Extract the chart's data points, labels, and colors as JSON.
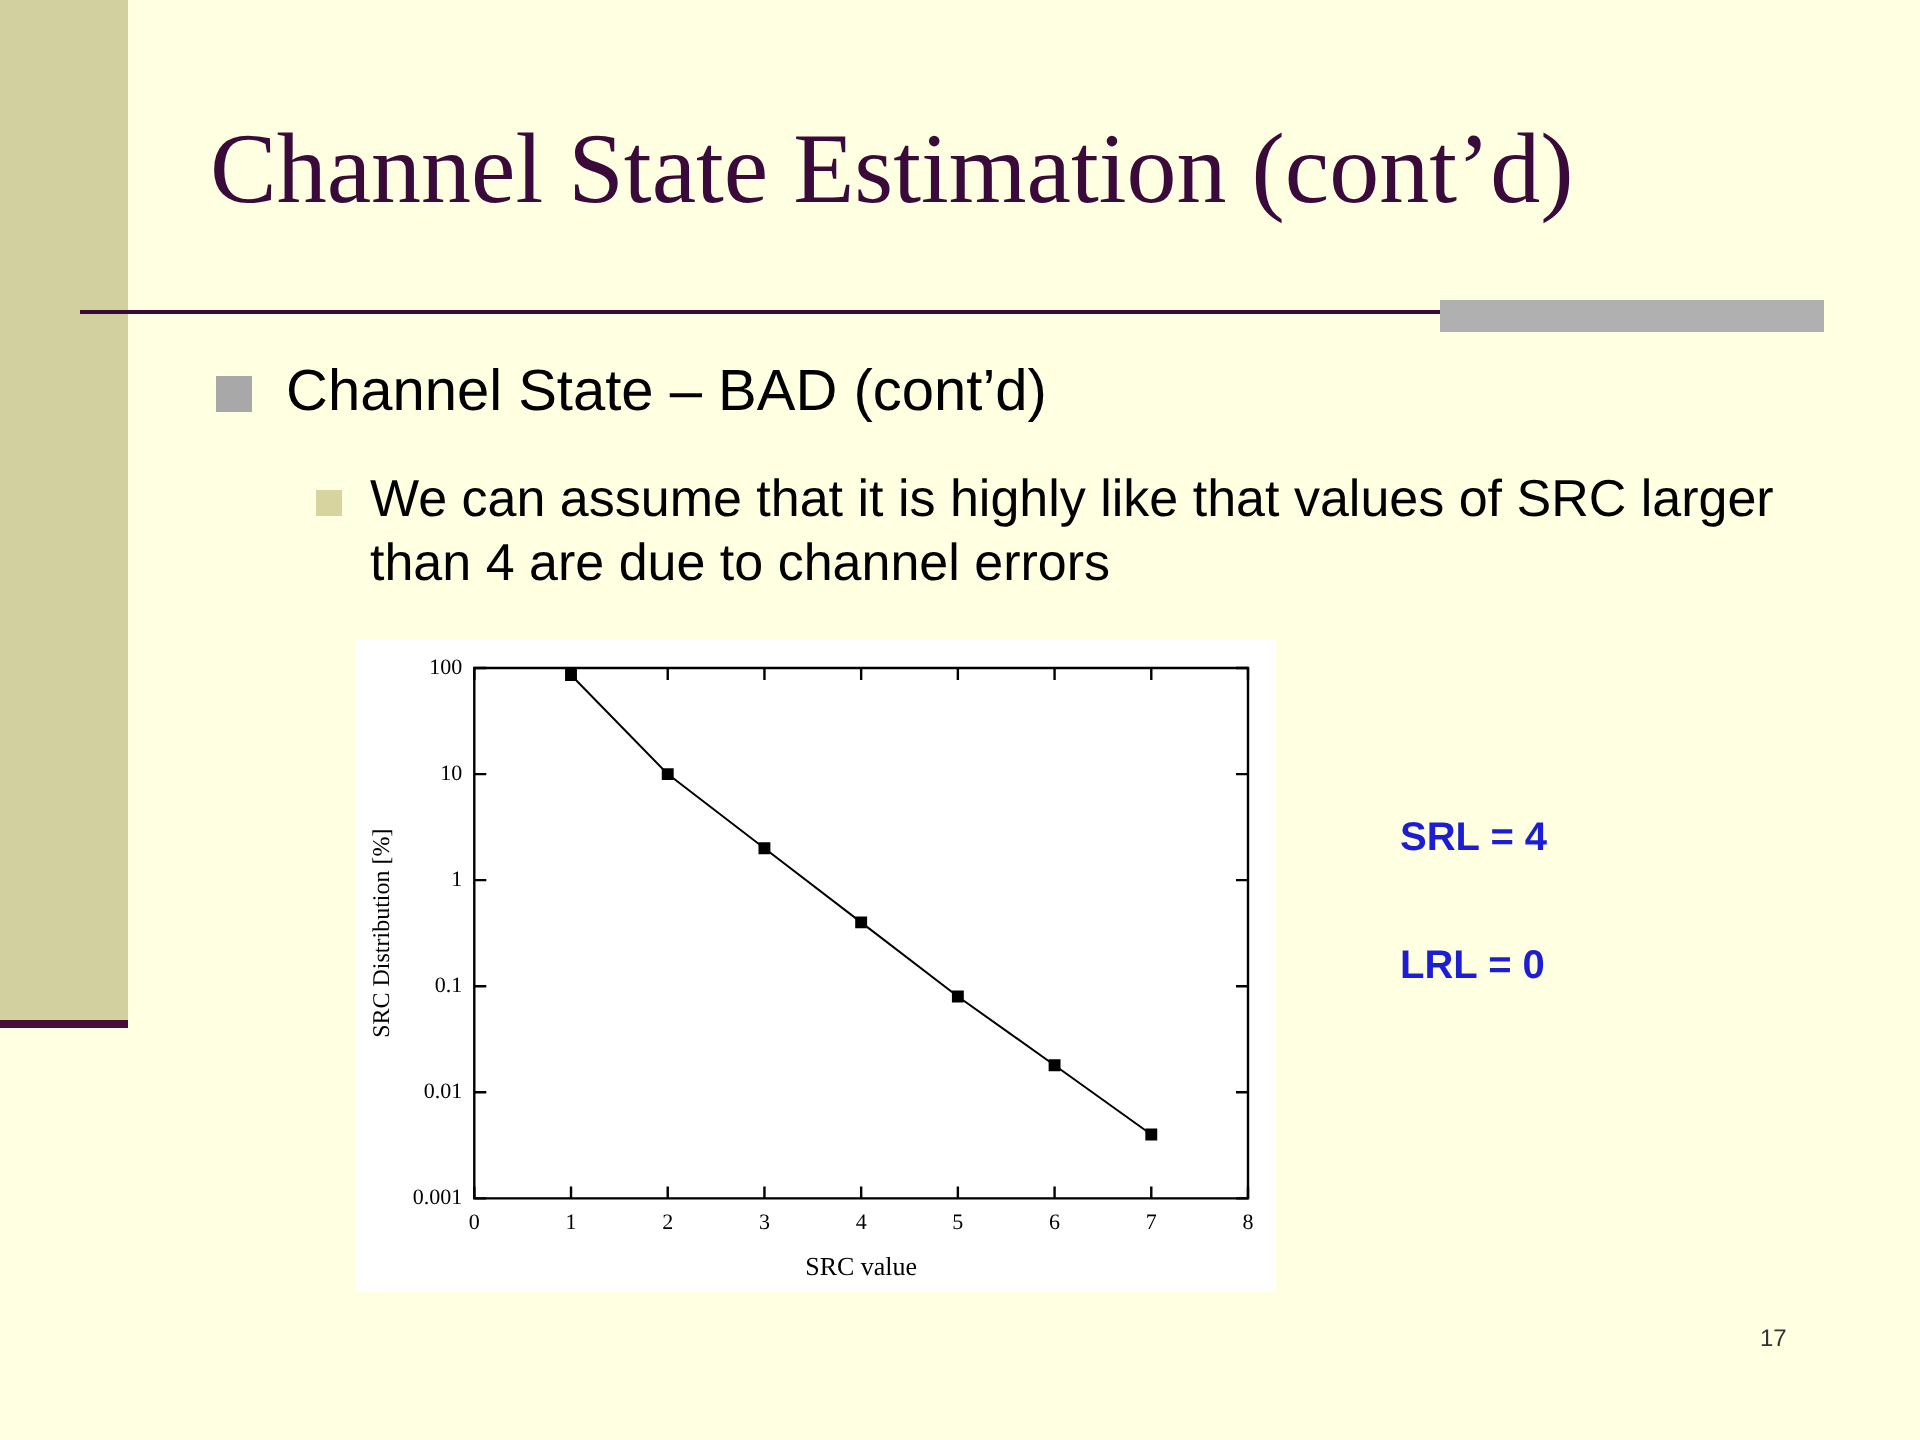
{
  "chart_data": {
    "type": "line",
    "title": "Channel State Estimation (cont’d)",
    "subtitle": "Channel State – BAD (cont’d)",
    "annotations": [
      "We can assume that it is highly like that values of SRC larger than 4 are due to channel errors",
      "SRL = 4",
      "LRL = 0",
      "17"
    ],
    "xlabel": "SRC value",
    "ylabel": "SRC Distribution [%]",
    "x": [
      1,
      2,
      3,
      4,
      5,
      6,
      7
    ],
    "series": [
      {
        "color": "#000000",
        "values": [
          86,
          10,
          2,
          0.4,
          0.08,
          0.018,
          0.004
        ]
      }
    ],
    "xlim": [
      0,
      8
    ],
    "xticks": [
      0,
      1,
      2,
      3,
      4,
      5,
      6,
      7,
      8
    ],
    "ylim": [
      0.001,
      100
    ],
    "yticks": [
      0.001,
      0.01,
      0.1,
      1,
      10,
      100
    ],
    "log": "y",
    "grid": false,
    "legend": false,
    "marker": "square",
    "line_style": "solid"
  }
}
